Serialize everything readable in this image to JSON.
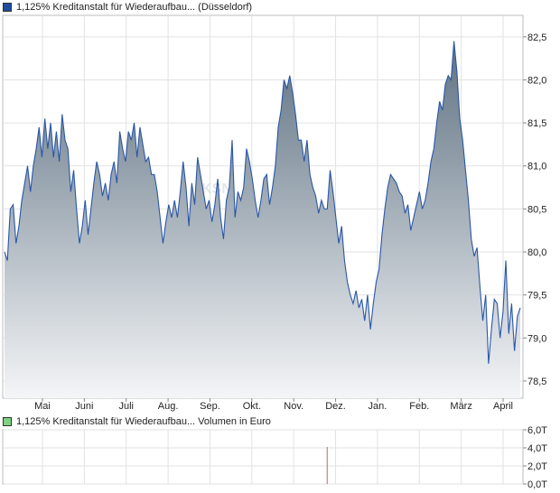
{
  "price_legend": {
    "text": "1,125% Kreditanstalt für Wiederaufbau... (Düsseldorf)",
    "swatch_color": "#1f4e9c"
  },
  "volume_legend": {
    "text": "1,125% Kreditanstalt für Wiederaufbau... Volumen in Euro",
    "swatch_color": "#7fd17f"
  },
  "watermark": "KSN",
  "chart_data": [
    {
      "type": "area",
      "ylim": [
        78.3,
        82.75
      ],
      "y_ticks": [
        "78,5",
        "79,0",
        "79,5",
        "80,0",
        "80,5",
        "81,0",
        "81,5",
        "82,0",
        "82,5"
      ],
      "y_tick_values": [
        78.5,
        79.0,
        79.5,
        80.0,
        80.5,
        81.0,
        81.5,
        82.0,
        82.5
      ],
      "x_tick_labels": [
        "Mai",
        "Juni",
        "Juli",
        "Aug.",
        "Sep.",
        "Okt.",
        "Nov.",
        "Dez.",
        "Jan.",
        "Feb.",
        "März",
        "April"
      ],
      "line_color": "#2a56a8",
      "fill_top_color": "#5f7282",
      "fill_bottom_color": "#f4f5f7",
      "grid": true,
      "series": [
        {
          "values": [
            80.0,
            79.9,
            80.5,
            80.55,
            80.1,
            80.3,
            80.6,
            80.8,
            81.0,
            80.7,
            81.0,
            81.2,
            81.45,
            81.1,
            81.55,
            81.2,
            81.5,
            81.1,
            81.4,
            81.05,
            81.6,
            81.3,
            81.2,
            80.7,
            80.95,
            80.5,
            80.1,
            80.3,
            80.6,
            80.2,
            80.5,
            80.8,
            81.05,
            80.9,
            80.65,
            80.8,
            80.6,
            80.9,
            81.05,
            80.8,
            81.4,
            81.2,
            81.05,
            81.4,
            81.3,
            81.5,
            81.1,
            81.45,
            81.25,
            81.05,
            81.1,
            80.9,
            80.9,
            80.7,
            80.4,
            80.1,
            80.35,
            80.55,
            80.4,
            80.6,
            80.4,
            80.7,
            81.05,
            80.75,
            80.3,
            80.8,
            80.55,
            81.1,
            80.9,
            80.7,
            80.5,
            80.6,
            80.35,
            80.55,
            80.85,
            80.4,
            80.15,
            80.6,
            80.75,
            81.3,
            80.4,
            80.7,
            80.6,
            80.75,
            81.2,
            81.05,
            80.85,
            80.6,
            80.4,
            80.6,
            80.85,
            80.9,
            80.55,
            80.75,
            81.0,
            81.45,
            81.65,
            82.0,
            81.9,
            82.05,
            81.85,
            81.6,
            81.3,
            81.3,
            81.05,
            81.3,
            80.9,
            80.75,
            80.65,
            80.45,
            80.6,
            80.5,
            80.5,
            80.95,
            80.7,
            80.4,
            80.1,
            80.3,
            79.9,
            79.65,
            79.5,
            79.4,
            79.55,
            79.35,
            79.45,
            79.2,
            79.5,
            79.1,
            79.4,
            79.65,
            79.8,
            80.2,
            80.5,
            80.75,
            80.9,
            80.85,
            80.8,
            80.7,
            80.65,
            80.45,
            80.55,
            80.25,
            80.4,
            80.55,
            80.7,
            80.5,
            80.6,
            80.8,
            81.05,
            81.2,
            81.5,
            81.75,
            81.65,
            81.95,
            82.05,
            82.0,
            82.45,
            82.1,
            81.55,
            81.3,
            80.95,
            80.6,
            80.15,
            79.95,
            80.05,
            79.6,
            79.2,
            79.5,
            78.7,
            79.1,
            79.45,
            79.4,
            79.0,
            79.3,
            79.9,
            79.05,
            79.4,
            78.85,
            79.25,
            79.35
          ]
        }
      ]
    },
    {
      "type": "bar",
      "ylim": [
        0,
        6
      ],
      "y_ticks": [
        "0,0T",
        "2,0T",
        "4,0T",
        "6,0T"
      ],
      "y_tick_values": [
        0,
        2,
        4,
        6
      ],
      "bar_color": "#c88080",
      "bars": [
        {
          "index": 112,
          "value": 4.1
        }
      ]
    }
  ]
}
